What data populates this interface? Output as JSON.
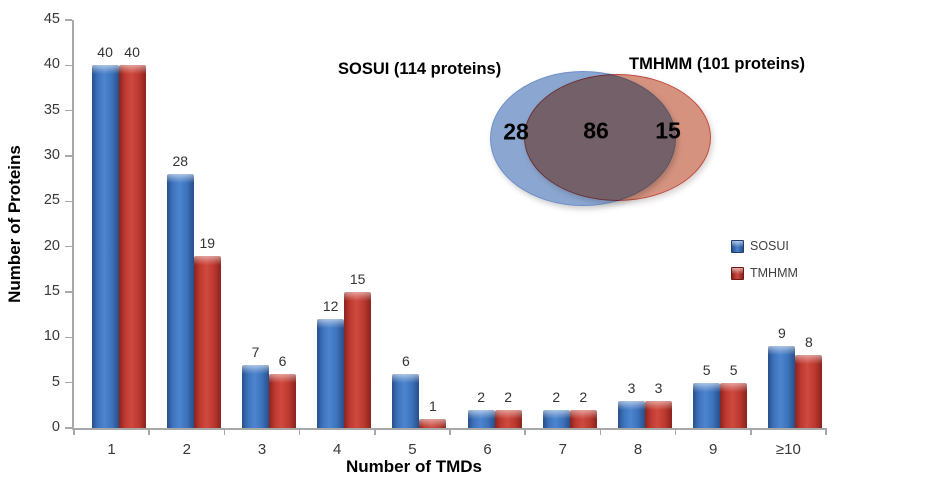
{
  "chart_data": {
    "type": "bar",
    "title": "",
    "xlabel": "Number of TMDs",
    "ylabel": "Number of Proteins",
    "categories": [
      "1",
      "2",
      "3",
      "4",
      "5",
      "6",
      "7",
      "8",
      "9",
      "≥10"
    ],
    "series": [
      {
        "name": "SOSUI",
        "color": "#3C73BE",
        "values": [
          40,
          28,
          7,
          12,
          6,
          2,
          2,
          3,
          5,
          9
        ]
      },
      {
        "name": "TMHMM",
        "color": "#C33B32",
        "values": [
          40,
          19,
          6,
          15,
          1,
          2,
          2,
          3,
          5,
          8
        ]
      }
    ],
    "ylim": [
      0,
      45
    ],
    "ytick_step": 5,
    "grid": false,
    "legend_position": "right-inside",
    "data_labels": true
  },
  "venn": {
    "left_label": "SOSUI (114 proteins)",
    "right_label": "TMHMM (101 proteins)",
    "left_only": "28",
    "overlap": "86",
    "right_only": "15",
    "left_color": "#8ba6d0",
    "right_color": "#d5937f"
  },
  "legend": {
    "items": [
      {
        "label": "SOSUI",
        "color": "#3C73BE"
      },
      {
        "label": "TMHMM",
        "color": "#C33B32"
      }
    ]
  }
}
